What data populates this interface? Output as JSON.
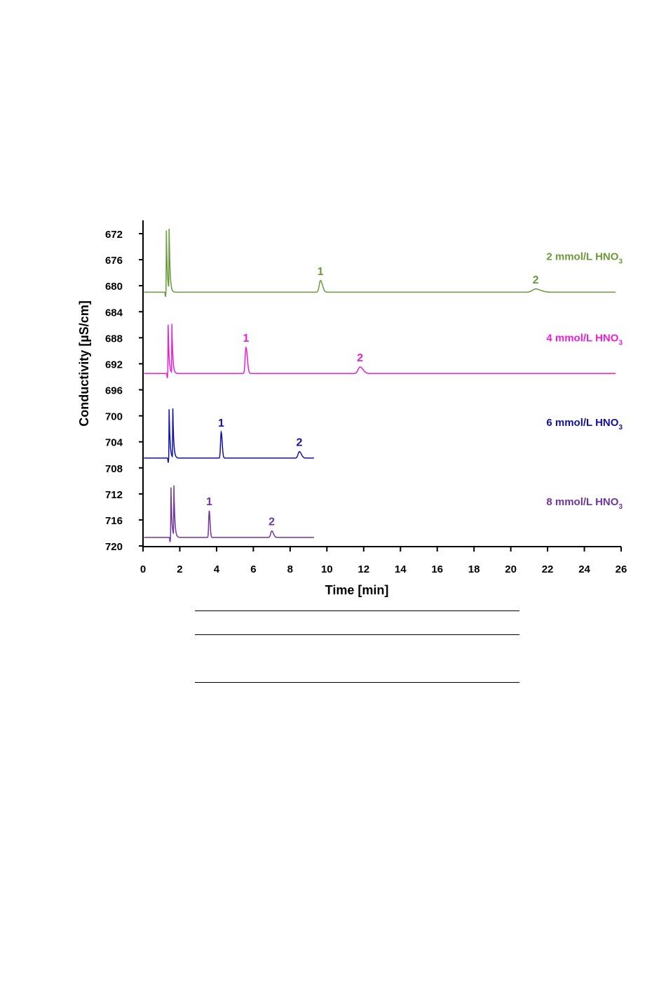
{
  "chart_data": {
    "type": "line",
    "title": "",
    "xlabel": "Time [min]",
    "ylabel": "Conductivity [µS/cm]",
    "xlim": [
      0,
      26
    ],
    "ylim": [
      672,
      720
    ],
    "y_inverted": true,
    "x_ticks": [
      0,
      2,
      4,
      6,
      8,
      10,
      12,
      14,
      16,
      18,
      20,
      22,
      24,
      26
    ],
    "y_ticks": [
      672,
      676,
      680,
      684,
      688,
      692,
      696,
      700,
      704,
      708,
      712,
      716,
      720
    ],
    "grid": false,
    "series": [
      {
        "name": "2 mmol/L HNO",
        "name_subscript": "3",
        "color": "#6a9a3a",
        "baseline": 681.0,
        "x_end": 25.7,
        "system_peaks": [
          1.27,
          1.42
        ],
        "system_peak_top": 671.5,
        "peaks": [
          {
            "label": "1",
            "x": 9.65,
            "y": 679.2,
            "width": 0.12
          },
          {
            "label": "2",
            "x": 21.35,
            "y": 680.5,
            "width": 0.3
          }
        ]
      },
      {
        "name": "4 mmol/L HNO",
        "name_subscript": "3",
        "color": "#ee1ddc",
        "baseline": 693.5,
        "x_end": 25.7,
        "system_peaks": [
          1.37,
          1.57
        ],
        "system_peak_top": 686.0,
        "peaks": [
          {
            "label": "1",
            "x": 5.6,
            "y": 689.5,
            "width": 0.08
          },
          {
            "label": "2",
            "x": 11.8,
            "y": 692.5,
            "width": 0.18
          }
        ]
      },
      {
        "name": "6 mmol/L HNO",
        "name_subscript": "3",
        "color": "#1010b0",
        "baseline": 706.5,
        "x_end": 9.3,
        "system_peaks": [
          1.42,
          1.62
        ],
        "system_peak_top": 699.0,
        "peaks": [
          {
            "label": "1",
            "x": 4.25,
            "y": 702.5,
            "width": 0.06
          },
          {
            "label": "2",
            "x": 8.5,
            "y": 705.5,
            "width": 0.12
          }
        ]
      },
      {
        "name": "8 mmol/L HNO",
        "name_subscript": "3",
        "color": "#7035a0",
        "baseline": 718.7,
        "x_end": 9.3,
        "system_peaks": [
          1.52,
          1.68
        ],
        "system_peak_top": 711.0,
        "peaks": [
          {
            "label": "1",
            "x": 3.6,
            "y": 714.6,
            "width": 0.05
          },
          {
            "label": "2",
            "x": 7.0,
            "y": 717.7,
            "width": 0.1
          }
        ]
      }
    ]
  }
}
